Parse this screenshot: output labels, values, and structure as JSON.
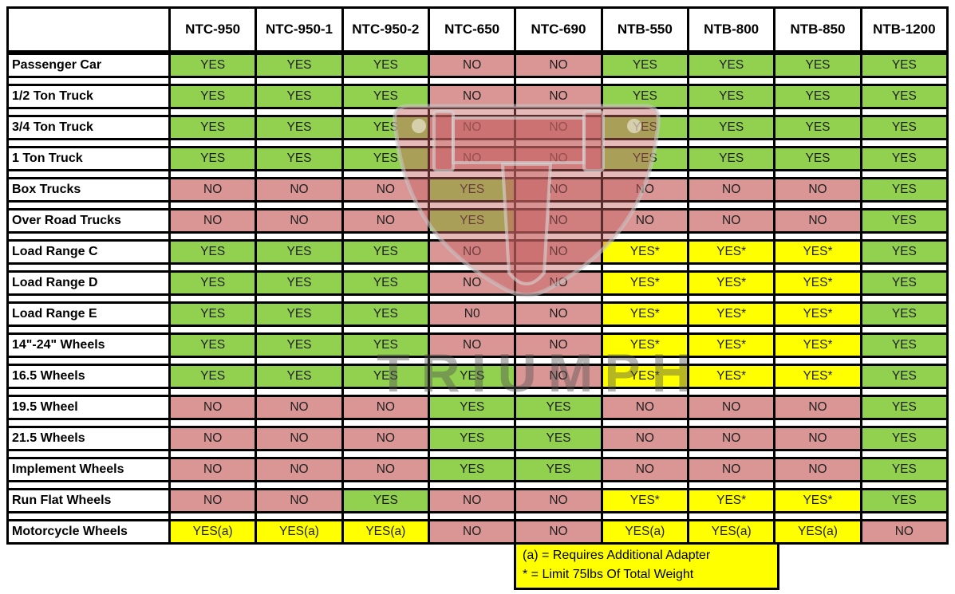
{
  "chart_data": {
    "type": "table",
    "columns": [
      "NTC-950",
      "NTC-950-1",
      "NTC-950-2",
      "NTC-650",
      "NTC-690",
      "NTB-550",
      "NTB-800",
      "NTB-850",
      "NTB-1200"
    ],
    "rows": [
      {
        "label": "Passenger Car",
        "values": [
          "YES",
          "YES",
          "YES",
          "NO",
          "NO",
          "YES",
          "YES",
          "YES",
          "YES"
        ]
      },
      {
        "label": "1/2 Ton Truck",
        "values": [
          "YES",
          "YES",
          "YES",
          "NO",
          "NO",
          "YES",
          "YES",
          "YES",
          "YES"
        ]
      },
      {
        "label": "3/4 Ton Truck",
        "values": [
          "YES",
          "YES",
          "YES",
          "NO",
          "NO",
          "YES",
          "YES",
          "YES",
          "YES"
        ]
      },
      {
        "label": "1 Ton Truck",
        "values": [
          "YES",
          "YES",
          "YES",
          "NO",
          "NO",
          "YES",
          "YES",
          "YES",
          "YES"
        ]
      },
      {
        "label": "Box Trucks",
        "values": [
          "NO",
          "NO",
          "NO",
          "YES",
          "NO",
          "NO",
          "NO",
          "NO",
          "YES"
        ]
      },
      {
        "label": "Over Road Trucks",
        "values": [
          "NO",
          "NO",
          "NO",
          "YES",
          "NO",
          "NO",
          "NO",
          "NO",
          "YES"
        ]
      },
      {
        "label": "Load Range C",
        "values": [
          "YES",
          "YES",
          "YES",
          "NO",
          "NO",
          "YES*",
          "YES*",
          "YES*",
          "YES"
        ]
      },
      {
        "label": "Load Range D",
        "values": [
          "YES",
          "YES",
          "YES",
          "NO",
          "NO",
          "YES*",
          "YES*",
          "YES*",
          "YES"
        ]
      },
      {
        "label": "Load Range E",
        "values": [
          "YES",
          "YES",
          "YES",
          "N0",
          "NO",
          "YES*",
          "YES*",
          "YES*",
          "YES"
        ]
      },
      {
        "label": "14\"-24\" Wheels",
        "values": [
          "YES",
          "YES",
          "YES",
          "NO",
          "NO",
          "YES*",
          "YES*",
          "YES*",
          "YES"
        ]
      },
      {
        "label": "16.5 Wheels",
        "values": [
          "YES",
          "YES",
          "YES",
          "YES",
          "NO",
          "YES*",
          "YES*",
          "YES*",
          "YES"
        ]
      },
      {
        "label": "19.5 Wheel",
        "values": [
          "NO",
          "NO",
          "NO",
          "YES",
          "YES",
          "NO",
          "NO",
          "NO",
          "YES"
        ]
      },
      {
        "label": "21.5 Wheels",
        "values": [
          "NO",
          "NO",
          "NO",
          "YES",
          "YES",
          "NO",
          "NO",
          "NO",
          "YES"
        ]
      },
      {
        "label": "Implement Wheels",
        "values": [
          "NO",
          "NO",
          "NO",
          "YES",
          "YES",
          "NO",
          "NO",
          "NO",
          "YES"
        ]
      },
      {
        "label": "Run Flat Wheels",
        "values": [
          "NO",
          "NO",
          "YES",
          "NO",
          "NO",
          "YES*",
          "YES*",
          "YES*",
          "YES"
        ]
      },
      {
        "label": "Motorcycle Wheels",
        "values": [
          "YES(a)",
          "YES(a)",
          "YES(a)",
          "NO",
          "NO",
          "YES(a)",
          "YES(a)",
          "YES(a)",
          "NO"
        ]
      }
    ],
    "notes": [
      "(a) = Requires Additional Adapter",
      "* = Limit 75lbs Of Total Weight"
    ],
    "legend_position": "bottom"
  },
  "watermark": {
    "text": "TRIUMPH"
  },
  "colors": {
    "yes": "#92d050",
    "no": "#d99694",
    "conditional": "#ffff00",
    "note_bg": "#ffff00",
    "border": "#000000",
    "watermark_red": "rgba(200,100,100,0.45)",
    "watermark_gray": "rgba(80,80,80,0.42)"
  }
}
